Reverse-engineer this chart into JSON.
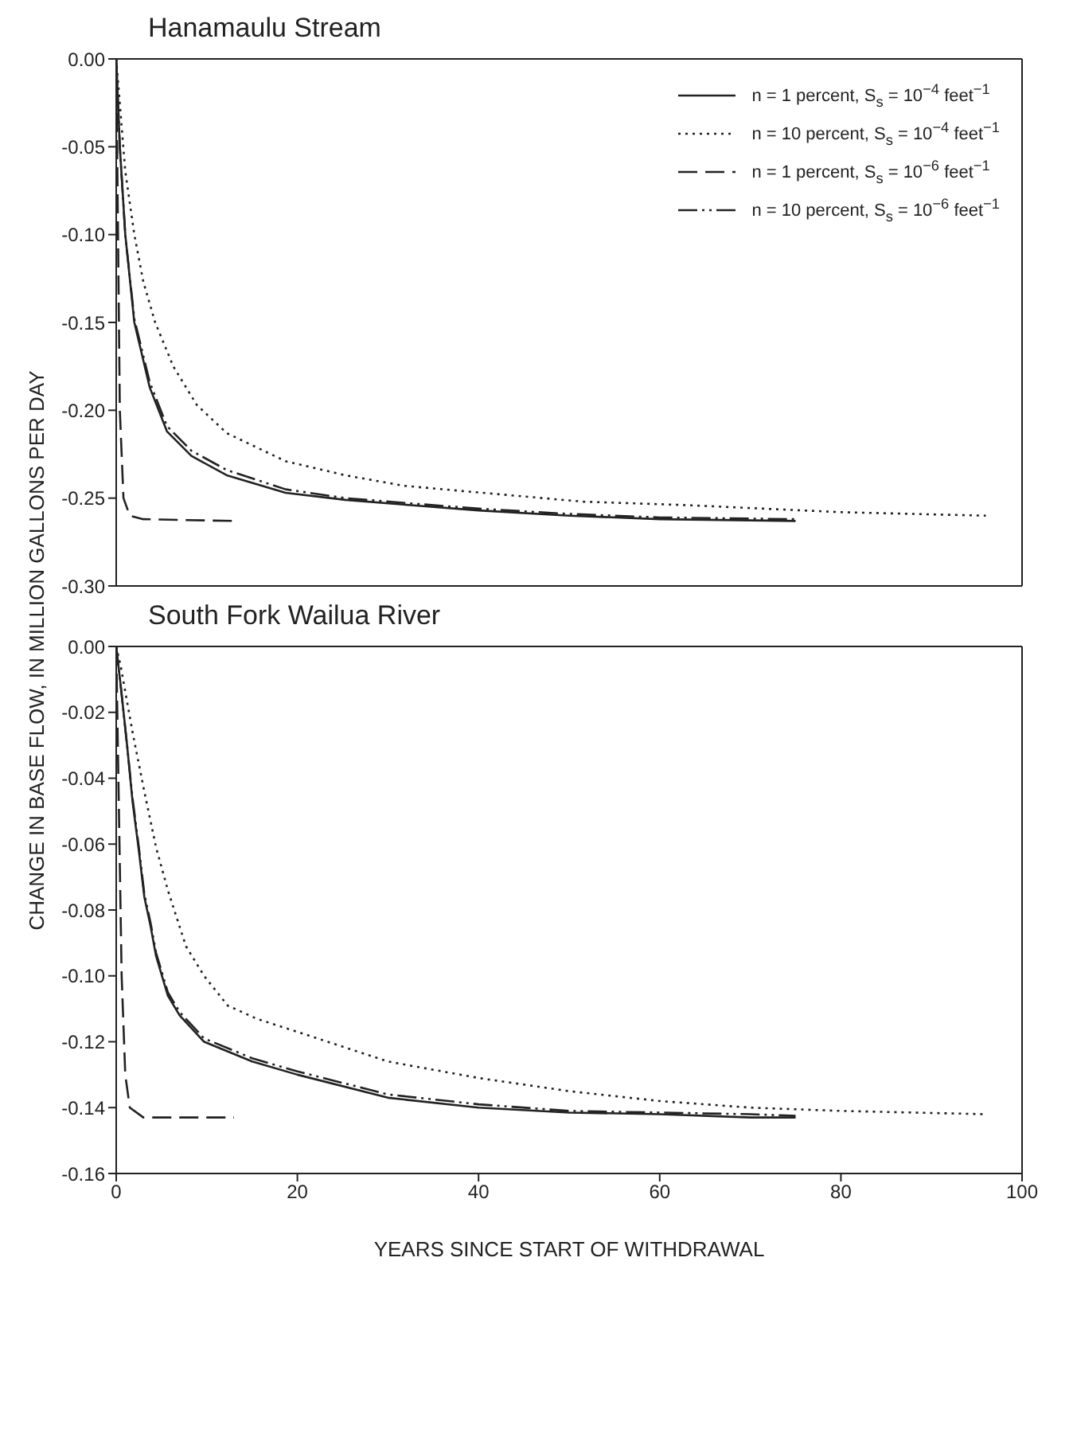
{
  "chart_data": [
    {
      "type": "line",
      "title": "Hanamaulu Stream",
      "ylabel": "CHANGE IN BASE FLOW, IN MILLION GALLONS PER DAY",
      "xlim": [
        0,
        100
      ],
      "xticks": [
        0,
        20,
        40,
        60,
        80,
        100
      ],
      "ylim": [
        -0.3,
        0
      ],
      "yticks": [
        {
          "value": -0.3,
          "label": "-0.30"
        },
        -0.25,
        {
          "value": -0.2,
          "label": "-0.20"
        },
        -0.15,
        {
          "value": -0.1,
          "label": "-0.10"
        },
        -0.05,
        {
          "value": 0,
          "label": "0.00"
        }
      ],
      "tick_labels": "y",
      "legend": "top right",
      "grid": false,
      "series": [
        {
          "name": "n = 1 percent, S$_{s}$ = 10$^{−4}$ feet$^{−1}$",
          "color": "#222222",
          "line_style": "solid",
          "x": [
            0,
            0.4,
            1,
            2,
            3.7,
            5.6,
            8.3,
            12.2,
            18.7,
            25.3,
            32.5,
            40,
            50,
            60,
            75
          ],
          "values": [
            0,
            -0.05,
            -0.1,
            -0.15,
            -0.187,
            -0.212,
            -0.226,
            -0.237,
            -0.247,
            -0.251,
            -0.254,
            -0.257,
            -0.26,
            -0.262,
            -0.263
          ]
        },
        {
          "name": "n = 10 percent, S$_{s}$ = 10$^{−4}$ feet$^{−1}$",
          "color": "#222222",
          "line_style": "dotted",
          "x": [
            0,
            1,
            2,
            3,
            4.3,
            6.3,
            8.9,
            12.2,
            18.7,
            25.3,
            31.8,
            38.3,
            51.5,
            63,
            80,
            96
          ],
          "values": [
            0,
            -0.064,
            -0.1,
            -0.127,
            -0.15,
            -0.175,
            -0.197,
            -0.213,
            -0.229,
            -0.237,
            -0.243,
            -0.246,
            -0.252,
            -0.254,
            -0.258,
            -0.26
          ]
        },
        {
          "name": "n = 1 percent, S$_{s}$ = 10$^{−6}$ feet$^{−1}$",
          "color": "#222222",
          "line_style": "dashed",
          "x": [
            0,
            0.2,
            0.4,
            0.8,
            1.5,
            3,
            13
          ],
          "values": [
            0,
            -0.1,
            -0.2,
            -0.25,
            -0.26,
            -0.262,
            -0.263
          ]
        },
        {
          "name": "n = 10 percent, S$_{s}$ = 10$^{−6}$ feet$^{−1}$",
          "color": "#222222",
          "line_style": "dashdot",
          "x": [
            0,
            0.4,
            1,
            2,
            3.7,
            5.6,
            8.3,
            12.2,
            18.7,
            25.3,
            32.5,
            40,
            50,
            60,
            75
          ],
          "values": [
            0,
            -0.05,
            -0.1,
            -0.148,
            -0.184,
            -0.209,
            -0.223,
            -0.234,
            -0.245,
            -0.25,
            -0.253,
            -0.256,
            -0.259,
            -0.261,
            -0.262
          ]
        }
      ]
    },
    {
      "type": "line",
      "title": "South Fork Wailua River",
      "xlabel": "YEARS SINCE START OF WITHDRAWAL",
      "xlim": [
        0,
        100
      ],
      "xticks": [
        0,
        20,
        40,
        60,
        80,
        100
      ],
      "ylim": [
        -0.16,
        0
      ],
      "yticks": [
        -0.16,
        -0.14,
        -0.12,
        {
          "value": -0.1,
          "label": "-0.10"
        },
        -0.08,
        -0.06,
        -0.04,
        -0.02,
        {
          "value": 0,
          "label": "0.00"
        }
      ],
      "grid": false,
      "series": [
        {
          "color": "#222222",
          "line_style": "solid",
          "x": [
            0,
            0.5,
            1.2,
            1.8,
            2.5,
            3.1,
            3.8,
            4.4,
            5.7,
            7,
            9.7,
            15,
            20,
            30,
            40,
            50,
            60,
            70,
            75
          ],
          "values": [
            0,
            -0.012,
            -0.03,
            -0.047,
            -0.062,
            -0.076,
            -0.085,
            -0.094,
            -0.106,
            -0.112,
            -0.12,
            -0.126,
            -0.13,
            -0.137,
            -0.14,
            -0.1415,
            -0.142,
            -0.143,
            -0.143
          ]
        },
        {
          "color": "#222222",
          "line_style": "dotted",
          "x": [
            0,
            0.5,
            1.8,
            3.1,
            4.4,
            5.7,
            7.7,
            9.7,
            12.3,
            15.5,
            20,
            30,
            40,
            50,
            60,
            70,
            80,
            96
          ],
          "values": [
            0,
            -0.006,
            -0.026,
            -0.044,
            -0.061,
            -0.074,
            -0.091,
            -0.1,
            -0.109,
            -0.113,
            -0.117,
            -0.126,
            -0.131,
            -0.135,
            -0.138,
            -0.14,
            -0.141,
            -0.142
          ]
        },
        {
          "color": "#222222",
          "line_style": "dashed",
          "x": [
            0,
            0.3,
            0.6,
            1,
            1.5,
            3,
            13
          ],
          "values": [
            0,
            -0.05,
            -0.1,
            -0.13,
            -0.14,
            -0.143,
            -0.143
          ]
        },
        {
          "color": "#222222",
          "line_style": "dashdot",
          "x": [
            0,
            0.5,
            1.2,
            1.8,
            2.5,
            3.1,
            3.8,
            4.4,
            5.7,
            7,
            9.7,
            15,
            20,
            30,
            40,
            50,
            60,
            70,
            75
          ],
          "values": [
            0,
            -0.012,
            -0.03,
            -0.046,
            -0.061,
            -0.075,
            -0.084,
            -0.093,
            -0.105,
            -0.111,
            -0.119,
            -0.125,
            -0.129,
            -0.136,
            -0.139,
            -0.141,
            -0.1415,
            -0.142,
            -0.1425
          ]
        }
      ]
    }
  ]
}
